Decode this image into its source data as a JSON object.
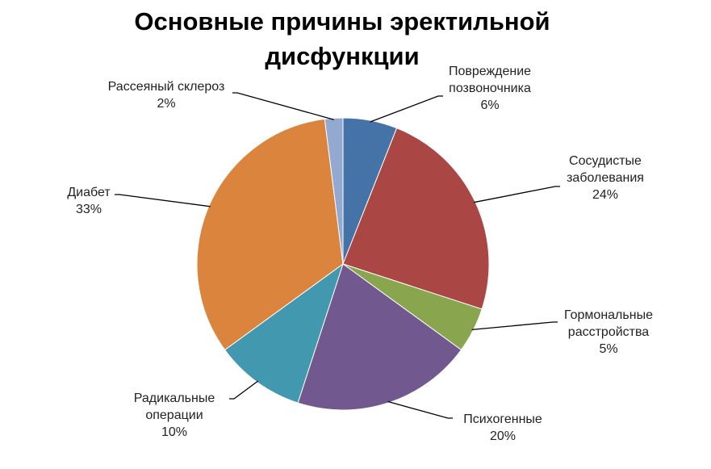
{
  "chart_data": {
    "type": "pie",
    "title_lines": [
      "Основные причины эректильной",
      "дисфункции"
    ],
    "slices": [
      {
        "label_lines": [
          "Повреждение",
          "позвоночника"
        ],
        "value": 6,
        "value_text": "6%",
        "color": "#4572A7"
      },
      {
        "label_lines": [
          "Сосудистые",
          "заболевания"
        ],
        "value": 24,
        "value_text": "24%",
        "color": "#AA4643"
      },
      {
        "label_lines": [
          "Гормональные",
          "расстройства"
        ],
        "value": 5,
        "value_text": "5%",
        "color": "#89A54E"
      },
      {
        "label_lines": [
          "Психогенные"
        ],
        "value": 20,
        "value_text": "20%",
        "color": "#71588F"
      },
      {
        "label_lines": [
          "Радикальные",
          "операции"
        ],
        "value": 10,
        "value_text": "10%",
        "color": "#4198AF"
      },
      {
        "label_lines": [
          "Диабет"
        ],
        "value": 33,
        "value_text": "33%",
        "color": "#DB843D"
      },
      {
        "label_lines": [
          "Рассеяный склероз"
        ],
        "value": 2,
        "value_text": "2%",
        "color": "#93A9CF"
      }
    ],
    "legend": "none"
  }
}
